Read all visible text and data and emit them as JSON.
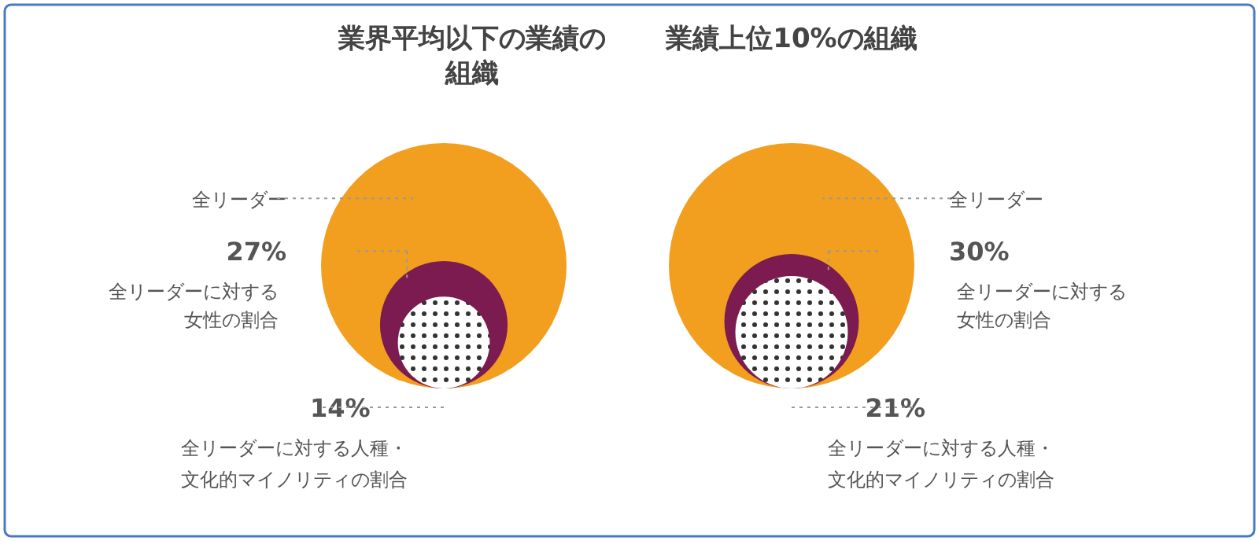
{
  "chart_data": [
    {
      "type": "other",
      "title": "業界平均以下の業績の組織",
      "categories": [
        "全リーダー",
        "全リーダーに対する女性の割合",
        "全リーダーに対する人種・文化的マイノリティの割合"
      ],
      "values": [
        null,
        27,
        14
      ],
      "value_labels": [
        null,
        "27%",
        "14%"
      ],
      "colors": [
        "#f29e1f",
        "#7b1b50",
        "#ffffff"
      ]
    },
    {
      "type": "other",
      "title": "業績上位10%の組織",
      "categories": [
        "全リーダー",
        "全リーダーに対する女性の割合",
        "全リーダーに対する人種・文化的マイノリティの割合"
      ],
      "values": [
        null,
        30,
        21
      ],
      "value_labels": [
        null,
        "30%",
        "21%"
      ],
      "colors": [
        "#f29e1f",
        "#7b1b50",
        "#ffffff"
      ]
    }
  ]
}
